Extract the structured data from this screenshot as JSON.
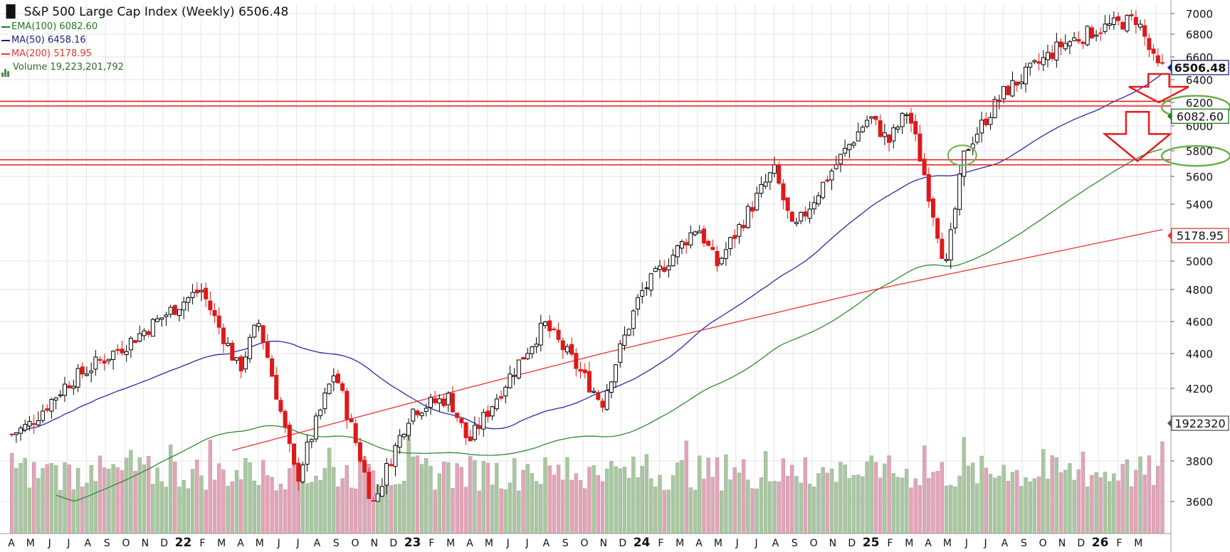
{
  "header": {
    "title": "S&P 500 Large Cap Index (Weekly)",
    "last_price": "6506.48",
    "indicators": [
      {
        "label": "EMA(100)",
        "value": "6082.60",
        "color": "#1e7a1e"
      },
      {
        "label": "MA(50)",
        "value": "6458.16",
        "color": "#1a237e"
      },
      {
        "label": "MA(200)",
        "value": "5178.95",
        "color": "#e53935"
      }
    ],
    "volume": {
      "label": "Volume",
      "value": "19,223,201,792"
    }
  },
  "price_labels": {
    "last": "6506.48",
    "ema100": "6082.60",
    "ma200": "5178.95",
    "volume": "1922320"
  },
  "colors": {
    "up_candle": "#000000",
    "down_candle": "#e01818",
    "ema": "#2e8b2e",
    "ma50": "#2a2aa8",
    "ma200": "#f03030",
    "hline": "#e81c1c",
    "circle": "#6ab04c",
    "volume_up": "#a8c8a0",
    "volume_down": "#e5a3b8",
    "arrow": "#e81c1c"
  },
  "chart_data": {
    "type": "candlestick",
    "title": "S&P 500 Large Cap Index (Weekly)",
    "price_axis_ticks": [
      3600,
      3800,
      4200,
      4400,
      4600,
      4800,
      5000,
      5400,
      5600,
      5800,
      6000,
      6200,
      6400,
      6600,
      6800,
      7000
    ],
    "x_tick_labels": [
      "A",
      "M",
      "J",
      "J",
      "A",
      "S",
      "O",
      "N",
      "D",
      "22",
      "F",
      "M",
      "A",
      "M",
      "J",
      "J",
      "A",
      "S",
      "O",
      "N",
      "D",
      "23",
      "F",
      "M",
      "A",
      "M",
      "J",
      "J",
      "A",
      "S",
      "O",
      "N",
      "D",
      "24",
      "F",
      "M",
      "A",
      "M",
      "J",
      "J",
      "A",
      "S",
      "O",
      "N",
      "D",
      "25",
      "F",
      "M",
      "A",
      "M",
      "J",
      "J",
      "A",
      "S",
      "O",
      "N",
      "D",
      "26",
      "F",
      "M"
    ],
    "anchors": [
      {
        "date": "Apr 2021",
        "close": 4000
      },
      {
        "date": "Jun 2021",
        "close": 4230
      },
      {
        "date": "Sep 2021",
        "close": 4450
      },
      {
        "date": "Dec 2021",
        "close": 4720
      },
      {
        "date": "Jan 2022",
        "close": 4800
      },
      {
        "date": "Mar 2022",
        "close": 4300
      },
      {
        "date": "Apr 2022",
        "close": 4600
      },
      {
        "date": "Jun 2022",
        "close": 3700
      },
      {
        "date": "Aug 2022",
        "close": 4300
      },
      {
        "date": "Oct 2022",
        "close": 3580
      },
      {
        "date": "Dec 2022",
        "close": 4080
      },
      {
        "date": "Feb 2023",
        "close": 4150
      },
      {
        "date": "Mar 2023",
        "close": 3900
      },
      {
        "date": "Jul 2023",
        "close": 4580
      },
      {
        "date": "Oct 2023",
        "close": 4120
      },
      {
        "date": "Dec 2023",
        "close": 4770
      },
      {
        "date": "Mar 2024",
        "close": 5250
      },
      {
        "date": "Apr 2024",
        "close": 4970
      },
      {
        "date": "Jul 2024",
        "close": 5650
      },
      {
        "date": "Aug 2024",
        "close": 5200
      },
      {
        "date": "Dec 2024",
        "close": 6080
      },
      {
        "date": "Jan 2025",
        "close": 5870
      },
      {
        "date": "Feb 2025",
        "close": 6130
      },
      {
        "date": "Apr 2025",
        "close": 4950
      },
      {
        "date": "May 2025",
        "close": 5800
      },
      {
        "date": "Jul 2025",
        "close": 6280
      },
      {
        "date": "Oct 2025",
        "close": 6700
      },
      {
        "date": "Dec 2025",
        "close": 6850
      },
      {
        "date": "Feb 2026",
        "close": 6950
      },
      {
        "date": "Mar 2026",
        "close": 6506
      }
    ],
    "series": [
      {
        "name": "EMA(100)",
        "last": 6082.6
      },
      {
        "name": "MA(50)",
        "last": 6458.16
      },
      {
        "name": "MA(200)",
        "last": 5178.95
      }
    ],
    "horizontal_lines": [
      6210,
      6170,
      5730,
      5690
    ],
    "annotations": [
      "circle near 5770 (May 2025)",
      "circle near 6180 right edge",
      "circle near 5770 right edge",
      "down arrow near 6300",
      "down arrow near 5850"
    ],
    "grid": true
  }
}
